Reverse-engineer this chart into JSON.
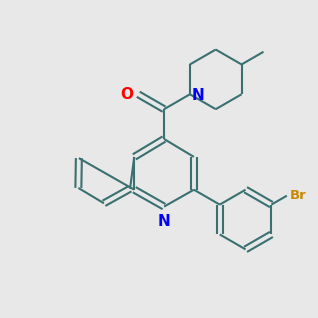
{
  "background_color": "#e8e8e8",
  "bond_color": "#3a7070",
  "N_color": "#0000ff",
  "O_color": "#ff0000",
  "Br_color": "#cc8800",
  "line_width": 1.5,
  "font_size": 9.5,
  "BL": 30
}
